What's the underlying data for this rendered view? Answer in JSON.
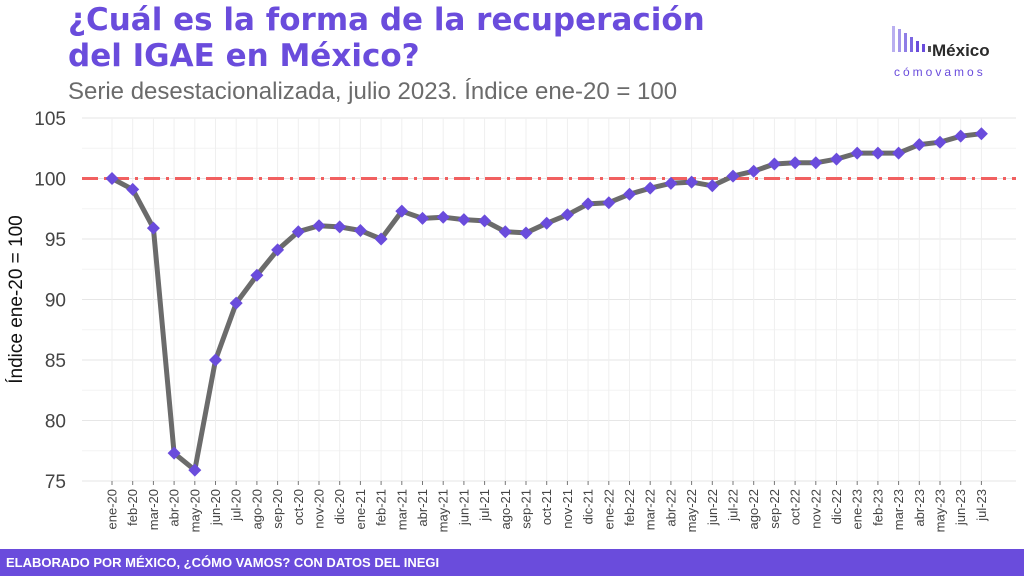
{
  "header": {
    "title_line1": "¿Cuál es la forma de la recuperación",
    "title_line2": "del IGAE en México?",
    "subtitle": "Serie desestacionalizada, julio 2023. Índice ene-20 = 100"
  },
  "logo": {
    "word1": "México",
    "word2": "cómovamos",
    "color": "#6a4cdc"
  },
  "footer": {
    "text": "ELABORADO POR MÉXICO, ¿CÓMO VAMOS? CON DATOS DEL INEGI"
  },
  "chart_data": {
    "type": "line",
    "ylabel": "Índice ene-20 = 100",
    "xlabel": "",
    "ylim": [
      75,
      105
    ],
    "yticks": [
      75,
      80,
      85,
      90,
      95,
      100,
      105
    ],
    "grid": true,
    "reference_line": {
      "y": 100,
      "color": "#f16060",
      "style": "dash-dot"
    },
    "categories": [
      "ene-20",
      "feb-20",
      "mar-20",
      "abr-20",
      "may-20",
      "jun-20",
      "jul-20",
      "ago-20",
      "sep-20",
      "oct-20",
      "nov-20",
      "dic-20",
      "ene-21",
      "feb-21",
      "mar-21",
      "abr-21",
      "may-21",
      "jun-21",
      "jul-21",
      "ago-21",
      "sep-21",
      "oct-21",
      "nov-21",
      "dic-21",
      "ene-22",
      "feb-22",
      "mar-22",
      "abr-22",
      "may-22",
      "jun-22",
      "jul-22",
      "ago-22",
      "sep-22",
      "oct-22",
      "nov-22",
      "dic-22",
      "ene-23",
      "feb-23",
      "mar-23",
      "abr-23",
      "may-23",
      "jun-23",
      "jul-23"
    ],
    "series": [
      {
        "line_color": "#6b6b6b",
        "marker_color": "#6a4cdc",
        "values": [
          100.0,
          99.1,
          95.9,
          77.3,
          75.9,
          85.0,
          89.7,
          92.0,
          94.1,
          95.6,
          96.1,
          96.0,
          95.7,
          95.0,
          97.3,
          96.7,
          96.8,
          96.6,
          96.5,
          95.6,
          95.5,
          96.3,
          97.0,
          97.9,
          98.0,
          98.7,
          99.2,
          99.6,
          99.7,
          99.4,
          100.2,
          100.6,
          101.2,
          101.3,
          101.3,
          101.6,
          102.1,
          102.1,
          102.1,
          102.8,
          103.0,
          103.5,
          103.7
        ]
      }
    ]
  }
}
